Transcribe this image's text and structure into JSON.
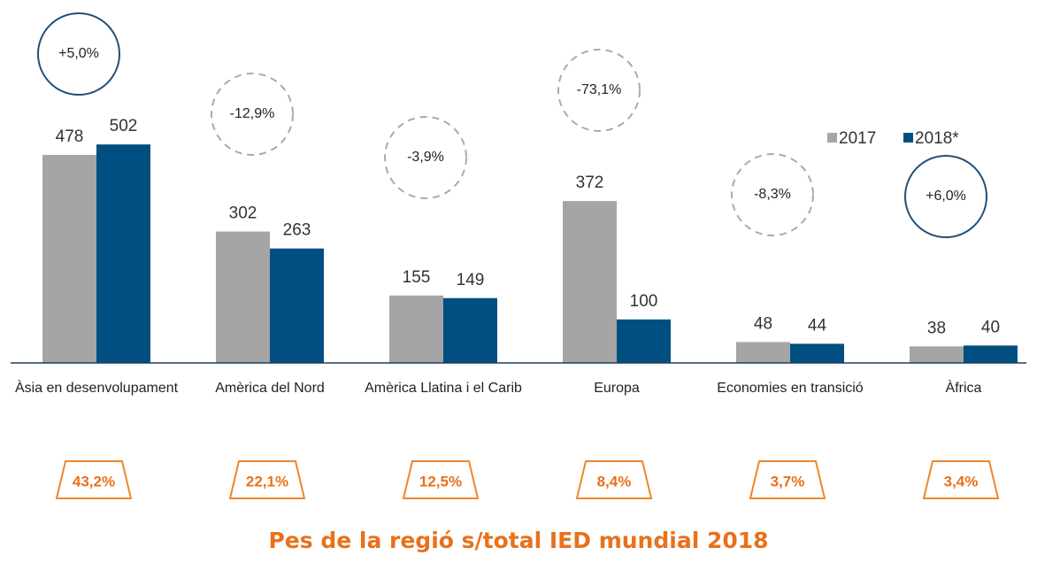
{
  "chart_data": {
    "type": "bar",
    "categories": [
      "Àsia en desenvolupament",
      "Amèrica del Nord",
      "Amèrica Llatina i el Carib",
      "Europa",
      "Economies en transició",
      "Àfrica"
    ],
    "series": [
      {
        "name": "2017",
        "color": "#a5a5a5",
        "values": [
          478,
          302,
          155,
          372,
          48,
          38
        ]
      },
      {
        "name": "2018*",
        "color": "#004f80",
        "values": [
          502,
          263,
          149,
          100,
          44,
          40
        ]
      }
    ],
    "ylim": [
      0,
      600
    ],
    "changes": {
      "values": [
        5.0,
        -12.9,
        -3.9,
        -73.1,
        -8.3,
        6.0
      ],
      "value_labels": [
        "+5,0%",
        "-12,9%",
        "-3,9%",
        "-73,1%",
        "-8,3%",
        "+6,0%"
      ]
    },
    "share_title": "Pes de la regió s/total IED mundial 2018",
    "shares": {
      "values": [
        43.2,
        22.1,
        12.5,
        8.4,
        3.7,
        3.4
      ],
      "value_labels": [
        "43,2%",
        "22,1%",
        "12,5%",
        "8,4%",
        "3,7%",
        "3,4%"
      ]
    }
  }
}
